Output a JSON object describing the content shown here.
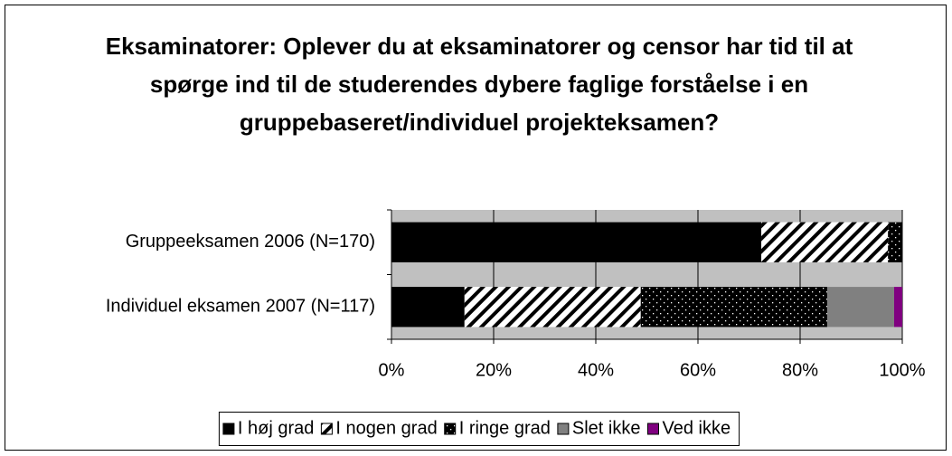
{
  "chart_data": {
    "type": "stacked-bar-horizontal",
    "title": "Eksaminatorer: Oplever du at eksaminatorer og censor har tid til at spørge ind til de studerendes dybere faglige forståelse i en gruppebaseret/individuel projekteksamen?",
    "categories": [
      "Gruppeeksamen 2006 (N=170)",
      "Individuel eksamen 2007 (N=117)"
    ],
    "series": [
      {
        "name": "I høj grad",
        "color": "#000000",
        "pattern": "solid",
        "values": [
          72.4,
          14.3
        ]
      },
      {
        "name": "I nogen grad",
        "color": "#000000",
        "pattern": "hatch",
        "values": [
          24.8,
          34.5
        ]
      },
      {
        "name": "I ringe grad",
        "color": "#000000",
        "pattern": "dots",
        "values": [
          2.8,
          36.5
        ]
      },
      {
        "name": "Slet ikke",
        "color": "#808080",
        "pattern": "solid",
        "values": [
          0,
          13.1
        ]
      },
      {
        "name": "Ved ikke",
        "color": "#800080",
        "pattern": "solid",
        "values": [
          0,
          1.6
        ]
      }
    ],
    "xlim": [
      0,
      100
    ],
    "xticks": [
      {
        "value": 0,
        "label": "0%"
      },
      {
        "value": 20,
        "label": "20%"
      },
      {
        "value": 40,
        "label": "40%"
      },
      {
        "value": 60,
        "label": "60%"
      },
      {
        "value": 80,
        "label": "80%"
      },
      {
        "value": 100,
        "label": "100%"
      }
    ],
    "grid": true,
    "legend": "bottom"
  }
}
